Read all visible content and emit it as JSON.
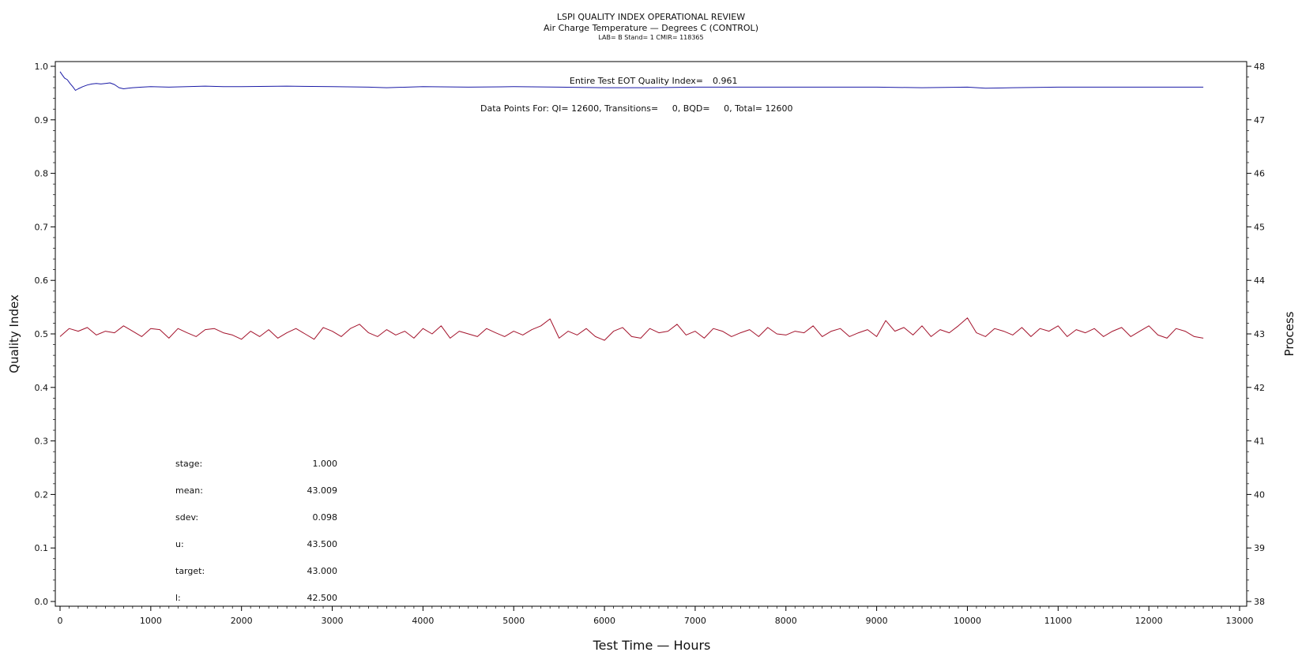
{
  "chart_data": {
    "type": "line",
    "title": "LSPI QUALITY INDEX OPERATIONAL REVIEW",
    "subtitle": "Air Charge Temperature — Degrees C (CONTROL)",
    "subtitle2": "LAB= B Stand= 1 CMIR= 118365",
    "xlabel": "Test Time — Hours",
    "ylabel_left": "Quality Index",
    "ylabel_right": "Process",
    "xlim": [
      0,
      13000
    ],
    "xticks": [
      0,
      1000,
      2000,
      3000,
      4000,
      5000,
      6000,
      7000,
      8000,
      9000,
      10000,
      11000,
      12000,
      13000
    ],
    "ylim_left": [
      0.0,
      1.0
    ],
    "yticks_left": [
      "0.0",
      "0.1",
      "0.2",
      "0.3",
      "0.4",
      "0.5",
      "0.6",
      "0.7",
      "0.8",
      "0.9",
      "1.0"
    ],
    "ylim_right": [
      38,
      48
    ],
    "yticks_right": [
      "38",
      "39",
      "40",
      "41",
      "42",
      "43",
      "44",
      "45",
      "46",
      "47",
      "48"
    ],
    "annotations": {
      "eot_label": "Entire Test EOT Quality Index=",
      "eot_value": "0.961",
      "data_points": "Data Points For: QI= 12600, Transitions=     0, BQD=     0, Total= 12600"
    },
    "stats": [
      {
        "label": "stage:",
        "value": "1.000"
      },
      {
        "label": "mean:",
        "value": "43.009"
      },
      {
        "label": "sdev:",
        "value": "0.098"
      },
      {
        "label": "u:",
        "value": "43.500"
      },
      {
        "label": "target:",
        "value": "43.000"
      },
      {
        "label": "l:",
        "value": "42.500"
      }
    ],
    "series": [
      {
        "axis": "left",
        "color": "#1a1aa6",
        "x": [
          0,
          20,
          50,
          80,
          110,
          140,
          170,
          200,
          250,
          300,
          350,
          400,
          450,
          500,
          550,
          600,
          650,
          700,
          750,
          800,
          900,
          1000,
          1200,
          1400,
          1600,
          1800,
          2000,
          2500,
          3000,
          3400,
          3600,
          4000,
          4500,
          5000,
          5500,
          6000,
          6500,
          7000,
          8000,
          9000,
          9500,
          10000,
          10200,
          10500,
          11000,
          12000,
          12600
        ],
        "y": [
          0.99,
          0.985,
          0.978,
          0.975,
          0.968,
          0.962,
          0.955,
          0.958,
          0.962,
          0.965,
          0.967,
          0.968,
          0.967,
          0.968,
          0.969,
          0.966,
          0.96,
          0.958,
          0.959,
          0.96,
          0.961,
          0.962,
          0.961,
          0.962,
          0.963,
          0.962,
          0.962,
          0.963,
          0.962,
          0.961,
          0.96,
          0.962,
          0.961,
          0.962,
          0.961,
          0.96,
          0.96,
          0.961,
          0.961,
          0.961,
          0.96,
          0.961,
          0.959,
          0.96,
          0.961,
          0.961,
          0.961
        ]
      },
      {
        "axis": "right",
        "color": "#a3122b",
        "x": [
          0,
          100,
          200,
          300,
          400,
          500,
          600,
          700,
          800,
          900,
          1000,
          1100,
          1200,
          1300,
          1400,
          1500,
          1600,
          1700,
          1800,
          1900,
          2000,
          2100,
          2200,
          2300,
          2400,
          2500,
          2600,
          2700,
          2800,
          2900,
          3000,
          3100,
          3200,
          3300,
          3400,
          3500,
          3600,
          3700,
          3800,
          3900,
          4000,
          4100,
          4200,
          4300,
          4400,
          4500,
          4600,
          4700,
          4800,
          4900,
          5000,
          5100,
          5200,
          5300,
          5400,
          5500,
          5600,
          5700,
          5800,
          5900,
          6000,
          6100,
          6200,
          6300,
          6400,
          6500,
          6600,
          6700,
          6800,
          6900,
          7000,
          7100,
          7200,
          7300,
          7400,
          7500,
          7600,
          7700,
          7800,
          7900,
          8000,
          8100,
          8200,
          8300,
          8400,
          8500,
          8600,
          8700,
          8800,
          8900,
          9000,
          9100,
          9200,
          9300,
          9400,
          9500,
          9600,
          9700,
          9800,
          9900,
          10000,
          10100,
          10200,
          10300,
          10400,
          10500,
          10600,
          10700,
          10800,
          10900,
          11000,
          11100,
          11200,
          11300,
          11400,
          11500,
          11600,
          11700,
          11800,
          11900,
          12000,
          12100,
          12200,
          12300,
          12400,
          12500,
          12600
        ],
        "y": [
          42.95,
          43.1,
          43.05,
          43.12,
          42.98,
          43.05,
          43.02,
          43.15,
          43.05,
          42.95,
          43.1,
          43.08,
          42.92,
          43.1,
          43.02,
          42.95,
          43.08,
          43.1,
          43.02,
          42.98,
          42.9,
          43.05,
          42.95,
          43.08,
          42.92,
          43.02,
          43.1,
          43.0,
          42.9,
          43.12,
          43.05,
          42.95,
          43.1,
          43.18,
          43.02,
          42.95,
          43.08,
          42.98,
          43.05,
          42.92,
          43.1,
          43.0,
          43.15,
          42.92,
          43.05,
          43.0,
          42.95,
          43.1,
          43.02,
          42.95,
          43.05,
          42.98,
          43.08,
          43.15,
          43.28,
          42.92,
          43.05,
          42.98,
          43.1,
          42.95,
          42.88,
          43.05,
          43.12,
          42.95,
          42.92,
          43.1,
          43.02,
          43.05,
          43.18,
          42.98,
          43.05,
          42.92,
          43.1,
          43.05,
          42.95,
          43.02,
          43.08,
          42.95,
          43.12,
          43.0,
          42.98,
          43.05,
          43.02,
          43.15,
          42.95,
          43.05,
          43.1,
          42.95,
          43.02,
          43.08,
          42.95,
          43.25,
          43.05,
          43.12,
          42.98,
          43.15,
          42.95,
          43.08,
          43.02,
          43.15,
          43.3,
          43.02,
          42.95,
          43.1,
          43.05,
          42.98,
          43.12,
          42.95,
          43.1,
          43.05,
          43.15,
          42.95,
          43.08,
          43.02,
          43.1,
          42.95,
          43.05,
          43.12,
          42.95,
          43.05,
          43.15,
          42.98,
          42.92,
          43.1,
          43.05,
          42.95,
          42.92
        ]
      }
    ],
    "grid": false,
    "legend": "none"
  }
}
